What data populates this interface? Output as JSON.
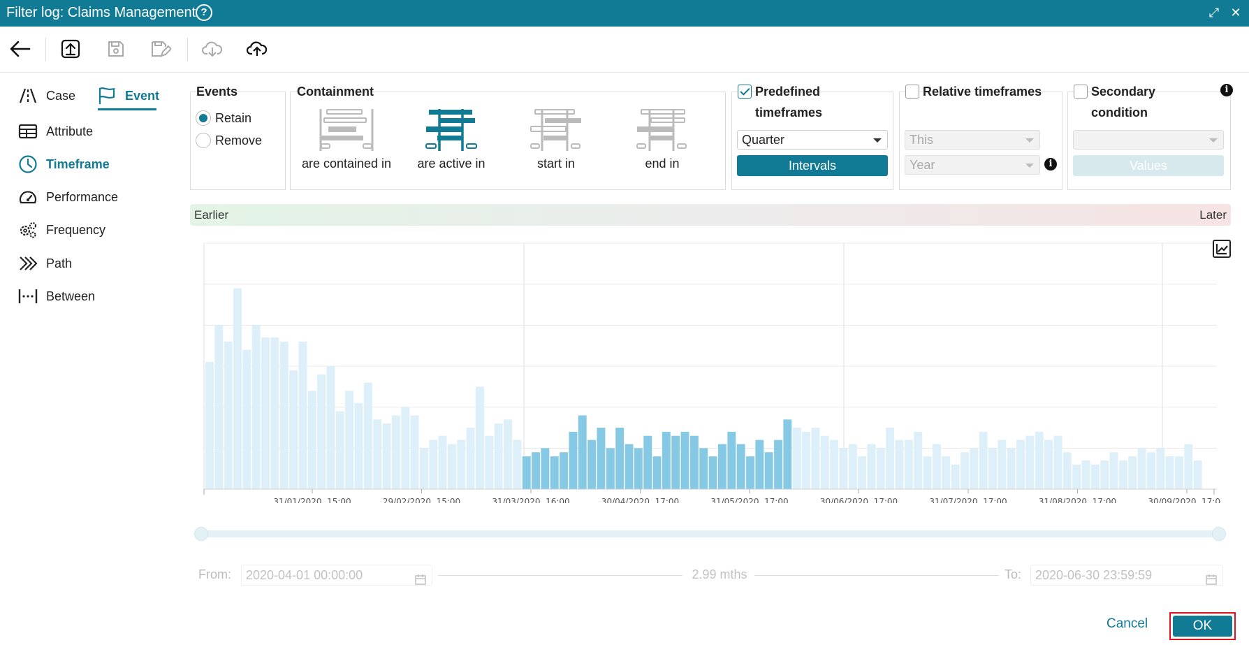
{
  "window": {
    "title": "Filter log: Claims Management",
    "help_glyph": "?",
    "maximize_glyph": "⤢",
    "close_glyph": "✕"
  },
  "toolbar": {
    "icons": [
      "back-arrow-icon",
      "upload-icon",
      "save-icon",
      "save-edit-icon",
      "cloud-download-icon",
      "cloud-upload-icon"
    ]
  },
  "sidebar": {
    "items": [
      {
        "label": "Case",
        "icon": "road-icon"
      },
      {
        "label": "Event",
        "icon": "flag-icon",
        "active": true
      },
      {
        "label": "Attribute",
        "icon": "table-icon"
      },
      {
        "label": "Timeframe",
        "icon": "clock-icon",
        "active": true
      },
      {
        "label": "Performance",
        "icon": "gauge-icon"
      },
      {
        "label": "Frequency",
        "icon": "gears-icon"
      },
      {
        "label": "Path",
        "icon": "chevrons-icon"
      },
      {
        "label": "Between",
        "icon": "dotted-bracket-icon"
      }
    ]
  },
  "events": {
    "title": "Events",
    "options": [
      {
        "label": "Retain",
        "selected": true
      },
      {
        "label": "Remove",
        "selected": false
      }
    ]
  },
  "containment": {
    "title": "Containment",
    "options": [
      {
        "label": "are contained in",
        "selected": false
      },
      {
        "label": "are active in",
        "selected": true
      },
      {
        "label": "start in",
        "selected": false
      },
      {
        "label": "end in",
        "selected": false
      }
    ]
  },
  "predefined": {
    "checked": true,
    "title_line1": "Predefined",
    "title_line2": "timeframes",
    "select_value": "Quarter",
    "button": "Intervals"
  },
  "relative": {
    "checked": false,
    "title": "Relative timeframes",
    "select1": "This",
    "select2": "Year",
    "info": "i"
  },
  "secondary": {
    "checked": false,
    "title_line1": "Secondary",
    "title_line2": "condition",
    "select_value": "",
    "button": "Values",
    "info": "i"
  },
  "timeline": {
    "earlier": "Earlier",
    "later": "Later"
  },
  "chart_data": {
    "type": "bar",
    "x_ticks": [
      "31/01/2020, 15:00",
      "29/02/2020, 15:00",
      "31/03/2020, 16:00",
      "30/04/2020, 17:00",
      "31/05/2020, 17:00",
      "30/06/2020, 17:00",
      "31/07/2020, 17:00",
      "31/08/2020, 17:00",
      "30/09/2020, 17:00"
    ],
    "values": [
      31,
      40,
      36,
      49,
      34,
      40,
      37,
      37,
      36,
      29,
      36,
      24,
      28,
      30,
      19,
      24,
      21,
      26,
      17,
      16,
      18,
      20,
      18,
      10,
      12,
      13,
      11,
      12,
      15,
      25,
      13,
      16,
      17,
      12,
      8,
      9,
      10,
      8,
      9,
      14,
      18,
      12,
      15,
      10,
      15,
      11,
      10,
      13,
      8,
      14,
      13,
      14,
      13,
      10,
      8,
      11,
      14,
      11,
      8,
      12,
      9,
      12,
      17,
      15,
      14,
      15,
      13,
      12,
      10,
      11,
      8,
      11,
      10,
      15,
      12,
      12,
      14,
      8,
      11,
      8,
      6,
      9,
      10,
      14,
      10,
      12,
      10,
      12,
      13,
      14,
      12,
      13,
      9,
      6,
      7,
      6,
      7,
      9,
      7,
      8,
      10,
      9,
      10,
      8,
      8,
      11,
      7
    ],
    "highlight_range": [
      34,
      62
    ],
    "colors": {
      "normal": "#ddeff8",
      "highlight": "#85c9e4",
      "grid": "#e8e8e8"
    }
  },
  "range": {
    "from_label": "From:",
    "from_value": "2020-04-01 00:00:00",
    "duration": "2.99 mths",
    "to_label": "To:",
    "to_value": "2020-06-30 23:59:59"
  },
  "footer": {
    "cancel": "Cancel",
    "ok": "OK"
  }
}
